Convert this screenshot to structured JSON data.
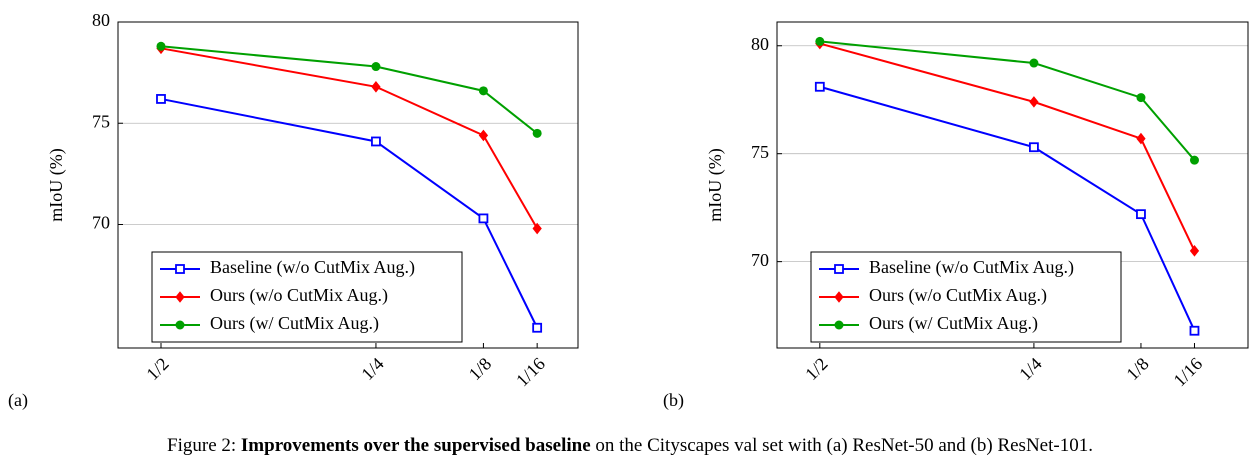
{
  "chart_data": [
    {
      "type": "line",
      "panel_label": "(a)",
      "ylabel": "mIoU (%)",
      "x": [
        0.5,
        0.25,
        0.125,
        0.0625
      ],
      "xlim": [
        0.55,
        0.015
      ],
      "xticks": [
        {
          "value": 0.5,
          "label": "1/2"
        },
        {
          "value": 0.25,
          "label": "1/4"
        },
        {
          "value": 0.125,
          "label": "1/8"
        },
        {
          "value": 0.0625,
          "label": "1/16"
        }
      ],
      "ylim": [
        63.9,
        80
      ],
      "yticks": [
        70,
        75,
        80
      ],
      "grid": true,
      "legend": "lower left",
      "series": [
        {
          "name": "Baseline (w/o CutMix Aug.)",
          "color": "#0000ff",
          "marker": "square",
          "values": [
            76.2,
            74.1,
            70.3,
            64.9
          ]
        },
        {
          "name": "Ours (w/o CutMix Aug.)",
          "color": "#ff0000",
          "marker": "diamond",
          "values": [
            78.7,
            76.8,
            74.4,
            69.8
          ]
        },
        {
          "name": "Ours (w/ CutMix Aug.)",
          "color": "#00a000",
          "marker": "circle",
          "values": [
            78.8,
            77.8,
            76.6,
            74.5
          ]
        }
      ]
    },
    {
      "type": "line",
      "panel_label": "(b)",
      "ylabel": "mIoU (%)",
      "x": [
        0.5,
        0.25,
        0.125,
        0.0625
      ],
      "xlim": [
        0.55,
        0.0
      ],
      "xticks": [
        {
          "value": 0.5,
          "label": "1/2"
        },
        {
          "value": 0.25,
          "label": "1/4"
        },
        {
          "value": 0.125,
          "label": "1/8"
        },
        {
          "value": 0.0625,
          "label": "1/16"
        }
      ],
      "ylim": [
        66,
        81.1
      ],
      "yticks": [
        70,
        75,
        80
      ],
      "grid": true,
      "legend": "lower left",
      "series": [
        {
          "name": "Baseline (w/o CutMix Aug.)",
          "color": "#0000ff",
          "marker": "square",
          "values": [
            78.1,
            75.3,
            72.2,
            66.8
          ]
        },
        {
          "name": "Ours (w/o CutMix Aug.)",
          "color": "#ff0000",
          "marker": "diamond",
          "values": [
            80.1,
            77.4,
            75.7,
            70.5
          ]
        },
        {
          "name": "Ours (w/ CutMix Aug.)",
          "color": "#00a000",
          "marker": "circle",
          "values": [
            80.2,
            79.2,
            77.6,
            74.7
          ]
        }
      ]
    }
  ],
  "caption": {
    "label": "Figure 2:",
    "bold": "Improvements over the supervised baseline",
    "text": "on the Cityscapes val set with (a) ResNet-50 and (b) ResNet-101."
  }
}
